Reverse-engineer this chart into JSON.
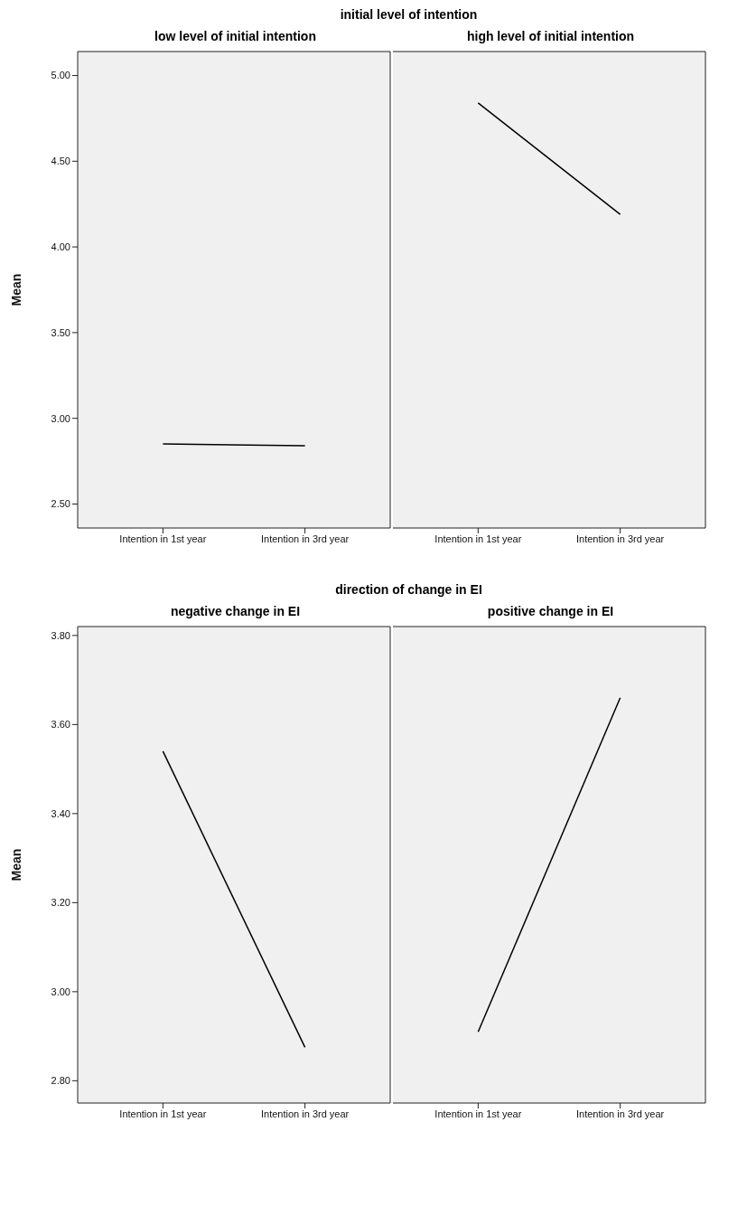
{
  "chart_data": [
    {
      "type": "line",
      "title": "initial level of intention",
      "subtitle": "low level of initial intention",
      "ylabel": "Mean",
      "categories": [
        "Intention in 1st year",
        "Intention in 3rd year"
      ],
      "series": [
        {
          "color": "#000000",
          "values": [
            2.85,
            2.84
          ]
        }
      ],
      "ylim": [
        2.36,
        5.14
      ],
      "yticks": [
        {
          "value": 2.5,
          "label": "2.50"
        },
        {
          "value": 3,
          "label": "3.00"
        },
        {
          "value": 3.5,
          "label": "3.50"
        },
        {
          "value": 4,
          "label": "4.00"
        },
        {
          "value": 4.5,
          "label": "4.50"
        },
        {
          "value": 5,
          "label": "5.00"
        }
      ],
      "marker": "none"
    },
    {
      "type": "line",
      "title": "high level of initial intention",
      "categories": [
        "Intention in 1st year",
        "Intention in 3rd year"
      ],
      "series": [
        {
          "color": "#000000",
          "values": [
            4.84,
            4.19
          ]
        }
      ],
      "ylim": [
        2.36,
        5.14
      ],
      "tick_labels": "x",
      "marker": "none"
    },
    {
      "type": "line",
      "title": "direction of change in EI",
      "subtitle": "negative change in EI",
      "ylabel": "Mean",
      "categories": [
        "Intention in 1st year",
        "Intention in 3rd year"
      ],
      "series": [
        {
          "color": "#000000",
          "values": [
            3.54,
            2.875
          ]
        }
      ],
      "ylim": [
        2.75,
        3.82
      ],
      "yticks": [
        {
          "value": 2.8,
          "label": "2.80"
        },
        {
          "value": 3,
          "label": "3.00"
        },
        {
          "value": 3.2,
          "label": "3.20"
        },
        {
          "value": 3.4,
          "label": "3.40"
        },
        {
          "value": 3.6,
          "label": "3.60"
        },
        {
          "value": 3.8,
          "label": "3.80"
        }
      ],
      "marker": "none"
    },
    {
      "type": "line",
      "title": "positive change in EI",
      "categories": [
        "Intention in 1st year",
        "Intention in 3rd year"
      ],
      "series": [
        {
          "color": "#000000",
          "values": [
            2.91,
            3.66
          ]
        }
      ],
      "ylim": [
        2.75,
        3.82
      ],
      "tick_labels": "x",
      "marker": "none"
    }
  ]
}
